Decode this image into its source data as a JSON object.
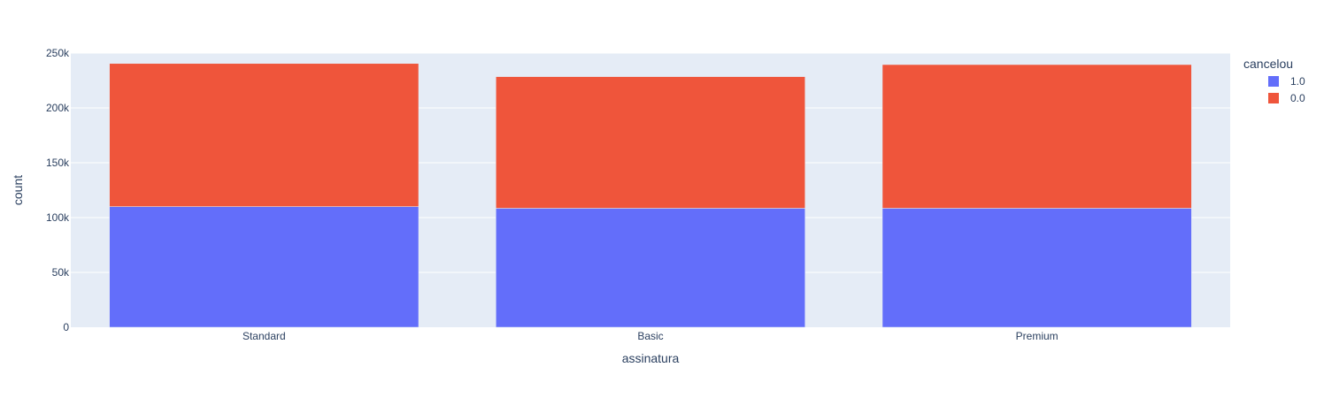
{
  "chart_data": {
    "type": "bar",
    "barmode": "stack",
    "categories": [
      "Standard",
      "Basic",
      "Premium"
    ],
    "series": [
      {
        "name": "1.0",
        "color": "#636efa",
        "values": [
          110000,
          108500,
          108500
        ]
      },
      {
        "name": "0.0",
        "color": "#ef553b",
        "values": [
          130500,
          120000,
          131000
        ]
      }
    ],
    "xlabel": "assinatura",
    "ylabel": "count",
    "ylim": [
      0,
      250000
    ],
    "yticks": [
      0,
      50000,
      100000,
      150000,
      200000,
      250000
    ],
    "ytick_labels": [
      "0",
      "50k",
      "100k",
      "150k",
      "200k",
      "250k"
    ],
    "legend": {
      "title": "cancelou",
      "position": "top-right"
    },
    "plot_bgcolor": "#e5ecf6",
    "grid": true
  }
}
